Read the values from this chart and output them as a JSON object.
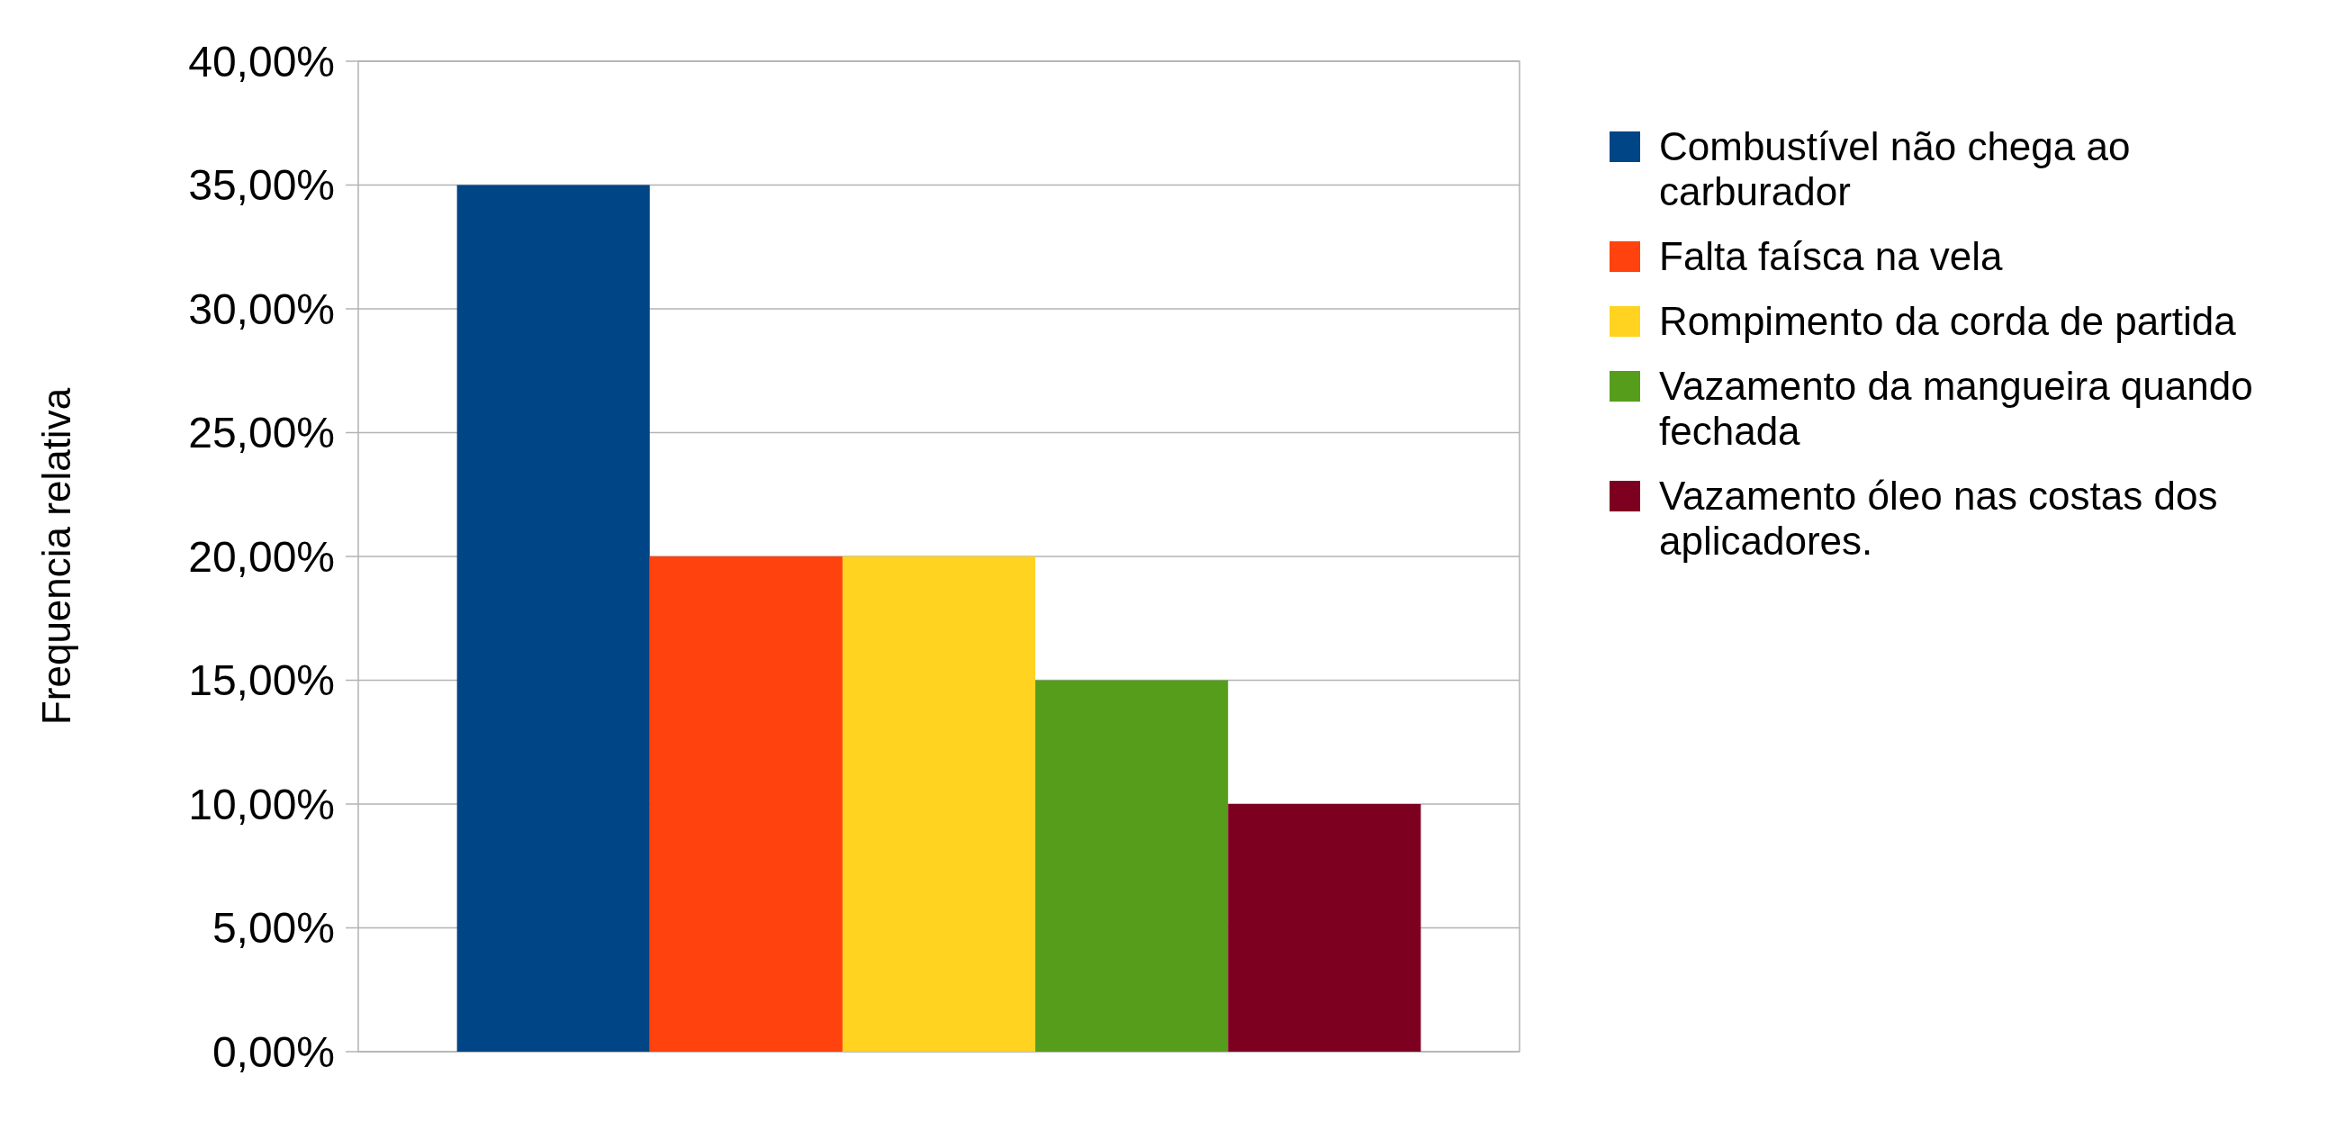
{
  "chart_data": {
    "type": "bar",
    "ylabel": "Frequencia relativa",
    "categories": [
      null
    ],
    "series": [
      {
        "name": "Combustível não chega ao carburador",
        "color": "#004586",
        "values": [
          35
        ]
      },
      {
        "name": "Falta faísca na vela",
        "color": "#ff420e",
        "values": [
          20
        ]
      },
      {
        "name": "Rompimento da corda de partida",
        "color": "#ffd320",
        "values": [
          20
        ]
      },
      {
        "name": "Vazamento da mangueira quando fechada",
        "color": "#579d1c",
        "values": [
          15
        ]
      },
      {
        "name": "Vazamento óleo nas costas dos aplicadores.",
        "color": "#7e0021",
        "values": [
          10
        ]
      }
    ],
    "ylim": [
      0,
      40
    ],
    "yticks": [
      {
        "value": 0,
        "label": "0,00%"
      },
      {
        "value": 5,
        "label": "5,00%"
      },
      {
        "value": 10,
        "label": "10,00%"
      },
      {
        "value": 15,
        "label": "15,00%"
      },
      {
        "value": 20,
        "label": "20,00%"
      },
      {
        "value": 25,
        "label": "25,00%"
      },
      {
        "value": 30,
        "label": "30,00%"
      },
      {
        "value": 35,
        "label": "35,00%"
      },
      {
        "value": 40,
        "label": "40,00%"
      }
    ],
    "grid": "y",
    "legend": "right"
  }
}
